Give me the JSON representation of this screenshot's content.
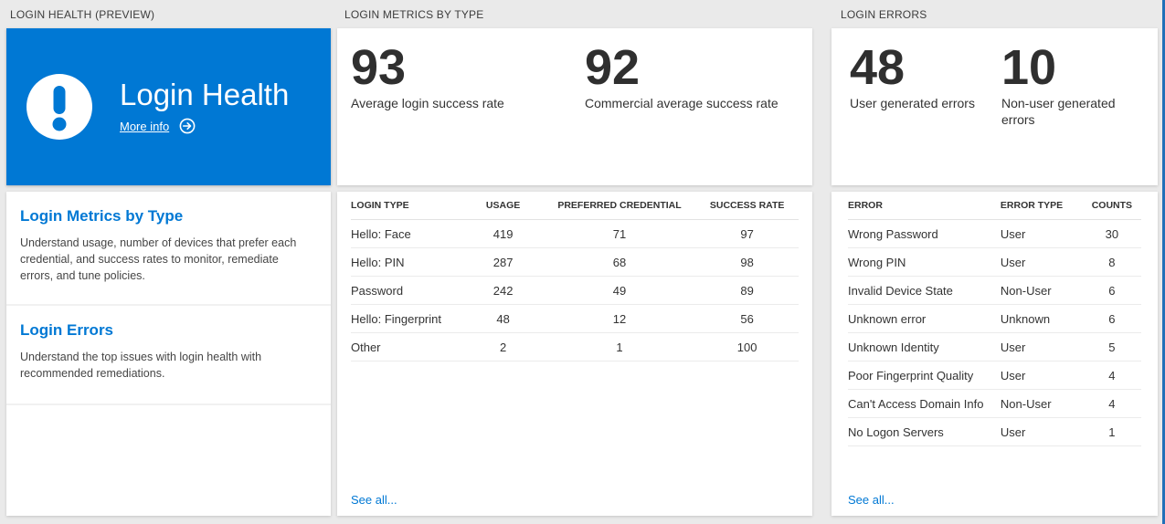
{
  "colors": {
    "accent": "#0078d4",
    "tile_background": "#0078d4",
    "page_background": "#eaeaea",
    "edge_stripe": "#2170b8"
  },
  "panels": {
    "health": {
      "header": "LOGIN HEALTH (PREVIEW)",
      "tile": {
        "title": "Login Health",
        "more_info_label": "More info",
        "icon": "exclamation-circle"
      },
      "sections": [
        {
          "title": "Login Metrics by Type",
          "description": "Understand usage, number of devices that prefer each credential, and success rates to monitor, remediate errors, and tune policies."
        },
        {
          "title": "Login Errors",
          "description": "Understand the top issues with login health with recommended remediations."
        }
      ]
    },
    "metrics": {
      "header": "LOGIN METRICS BY TYPE",
      "stats": [
        {
          "value": "93",
          "label": "Average login success rate"
        },
        {
          "value": "92",
          "label": "Commercial average success rate"
        }
      ],
      "table": {
        "columns": [
          "LOGIN TYPE",
          "USAGE",
          "PREFERRED CREDENTIAL",
          "SUCCESS RATE"
        ],
        "rows": [
          [
            "Hello: Face",
            "419",
            "71",
            "97"
          ],
          [
            "Hello: PIN",
            "287",
            "68",
            "98"
          ],
          [
            "Password",
            "242",
            "49",
            "89"
          ],
          [
            "Hello: Fingerprint",
            "48",
            "12",
            "56"
          ],
          [
            "Other",
            "2",
            "1",
            "100"
          ]
        ],
        "see_all_label": "See all..."
      }
    },
    "errors": {
      "header": "LOGIN ERRORS",
      "stats": [
        {
          "value": "48",
          "label": "User generated errors"
        },
        {
          "value": "10",
          "label": "Non-user generated errors"
        }
      ],
      "table": {
        "columns": [
          "ERROR",
          "ERROR TYPE",
          "COUNTS"
        ],
        "rows": [
          [
            "Wrong Password",
            "User",
            "30"
          ],
          [
            "Wrong PIN",
            "User",
            "8"
          ],
          [
            "Invalid Device State",
            "Non-User",
            "6"
          ],
          [
            "Unknown error",
            "Unknown",
            "6"
          ],
          [
            "Unknown Identity",
            "User",
            "5"
          ],
          [
            "Poor Fingerprint Quality",
            "User",
            "4"
          ],
          [
            "Can't Access Domain Info",
            "Non-User",
            "4"
          ],
          [
            "No Logon Servers",
            "User",
            "1"
          ]
        ],
        "see_all_label": "See all..."
      }
    }
  }
}
